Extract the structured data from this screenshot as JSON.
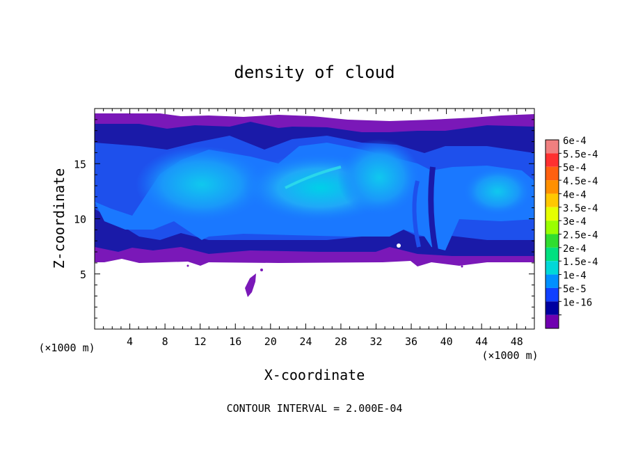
{
  "chart_data": {
    "type": "heatmap",
    "title": "density of cloud",
    "xlabel": "X-coordinate",
    "ylabel": "Z-coordinate",
    "x_unit": "(×1000 m)",
    "y_unit": "(×1000 m)",
    "xlim": [
      0,
      50
    ],
    "ylim": [
      0,
      20
    ],
    "x_ticks": [
      "4",
      "8",
      "12",
      "16",
      "20",
      "24",
      "28",
      "32",
      "36",
      "40",
      "44",
      "48"
    ],
    "x_tick_values": [
      4,
      8,
      12,
      16,
      20,
      24,
      28,
      32,
      36,
      40,
      44,
      48
    ],
    "y_ticks": [
      "5",
      "10",
      "15"
    ],
    "y_tick_values": [
      5,
      10,
      15
    ],
    "footer": "CONTOUR INTERVAL = 2.000E-04",
    "colorbar": {
      "labels": [
        "6e-4",
        "5.5e-4",
        "5e-4",
        "4.5e-4",
        "4e-4",
        "3.5e-4",
        "3e-4",
        "2.5e-4",
        "2e-4",
        "1.5e-4",
        "1e-4",
        "5e-5",
        "1e-16"
      ],
      "colors": [
        "#f08080",
        "#ff3030",
        "#ff6010",
        "#ff9000",
        "#ffc800",
        "#e6ff00",
        "#9aff00",
        "#30dd30",
        "#00e080",
        "#00d8d8",
        "#0090ff",
        "#1040ff",
        "#0000a0",
        "#7000b0"
      ]
    },
    "cloud_layer": {
      "base_z": 6.3,
      "top_z_profile": [
        {
          "x": 0,
          "z": 19.4
        },
        {
          "x": 8,
          "z": 19.4
        },
        {
          "x": 10,
          "z": 19.2
        },
        {
          "x": 15,
          "z": 19.0
        },
        {
          "x": 24,
          "z": 19.0
        },
        {
          "x": 28,
          "z": 18.8
        },
        {
          "x": 32,
          "z": 18.7
        },
        {
          "x": 40,
          "z": 18.8
        },
        {
          "x": 44,
          "z": 19.2
        },
        {
          "x": 50,
          "z": 19.3
        }
      ],
      "core_value_range": [
        "1e-4",
        "2e-4"
      ]
    }
  }
}
